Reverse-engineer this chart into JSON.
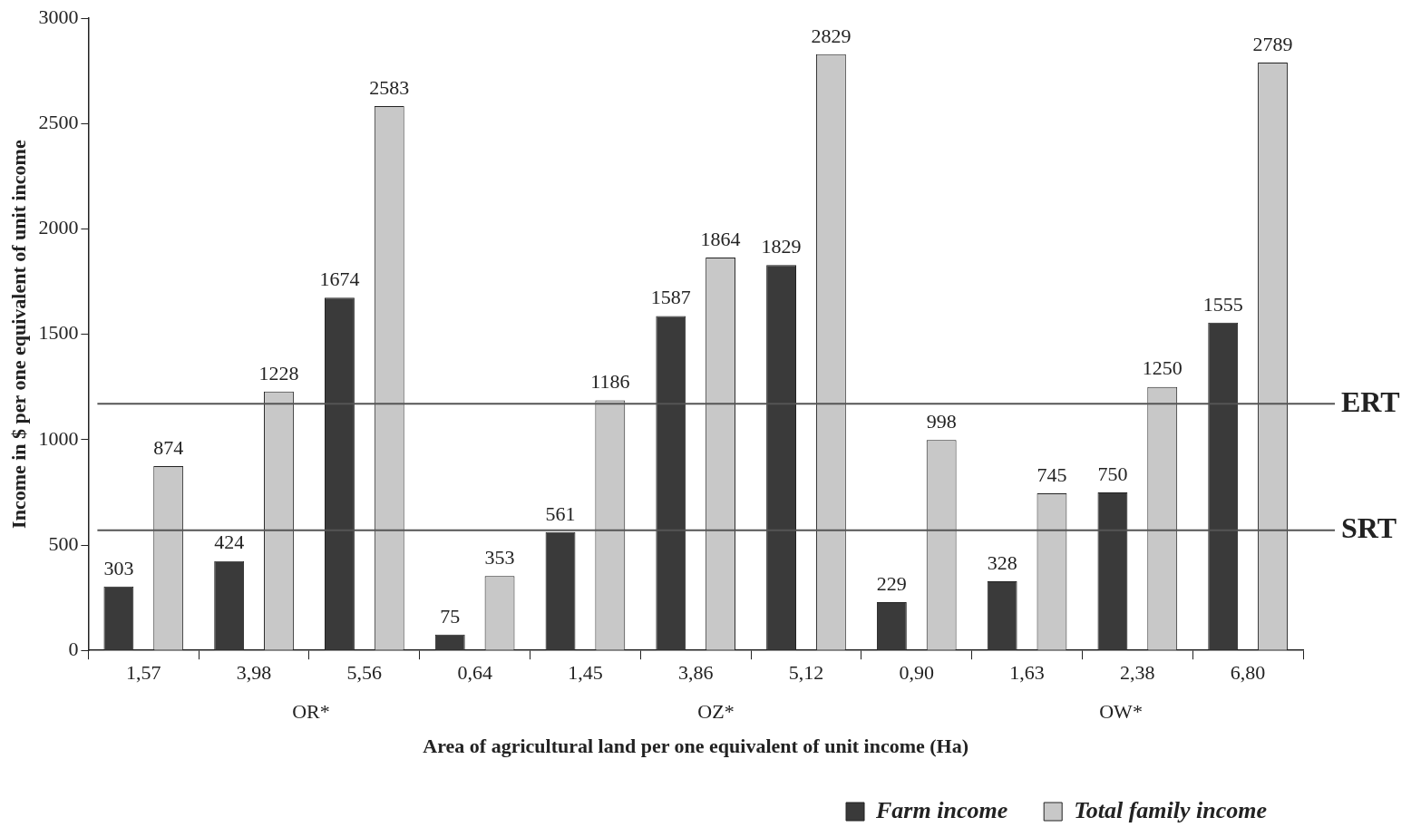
{
  "chart_data": {
    "type": "bar",
    "xlabel": "Area of agricultural land per one equivalent of unit income (Ha)",
    "ylabel": "Income in $ per one equivalent of unit income",
    "categories": [
      "1,57",
      "3,98",
      "5,56",
      "0,64",
      "1,45",
      "3,86",
      "5,12",
      "0,90",
      "1,63",
      "2,38",
      "6,80"
    ],
    "series": [
      {
        "name": "Farm income",
        "color": "#3a3a3a",
        "values": [
          303,
          424,
          1674,
          75,
          561,
          1587,
          1829,
          229,
          328,
          750,
          1555
        ]
      },
      {
        "name": "Total family income",
        "color": "#c8c8c8",
        "values": [
          874,
          1228,
          2583,
          353,
          1186,
          1864,
          2829,
          998,
          745,
          1250,
          2789
        ]
      }
    ],
    "ylim": [
      0,
      3000
    ],
    "yticks": [
      0,
      500,
      1000,
      1500,
      2000,
      2500,
      3000
    ],
    "ref_lines": [
      {
        "axis": "y",
        "value": 1170,
        "label": "ERT",
        "color": "#555555"
      },
      {
        "axis": "y",
        "value": 570,
        "label": "SRT",
        "color": "#555555"
      }
    ],
    "annotations": [
      "OR*",
      "OZ*",
      "OW*"
    ],
    "data_labels": true,
    "grid": false,
    "legend": "bottom right"
  }
}
